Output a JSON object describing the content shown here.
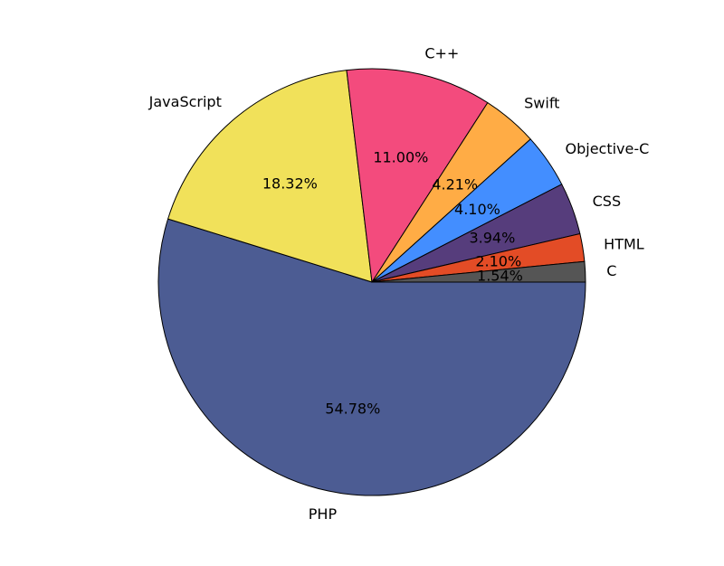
{
  "chart_data": {
    "type": "pie",
    "title": "",
    "start_angle_deg": 0,
    "direction": "clockwise",
    "slices": [
      {
        "label": "PHP",
        "value": 54.78,
        "pct_text": "54.78%",
        "color": "#4c5c93"
      },
      {
        "label": "JavaScript",
        "value": 18.32,
        "pct_text": "18.32%",
        "color": "#f1e15a"
      },
      {
        "label": "C++",
        "value": 11.0,
        "pct_text": "11.00%",
        "color": "#f34b7d"
      },
      {
        "label": "Swift",
        "value": 4.21,
        "pct_text": "4.21%",
        "color": "#ffac45"
      },
      {
        "label": "Objective-C",
        "value": 4.1,
        "pct_text": "4.10%",
        "color": "#438eff"
      },
      {
        "label": "CSS",
        "value": 3.94,
        "pct_text": "3.94%",
        "color": "#563d7c"
      },
      {
        "label": "HTML",
        "value": 2.1,
        "pct_text": "2.10%",
        "color": "#e34c26"
      },
      {
        "label": "C",
        "value": 1.54,
        "pct_text": "1.54%",
        "color": "#555555"
      }
    ]
  }
}
